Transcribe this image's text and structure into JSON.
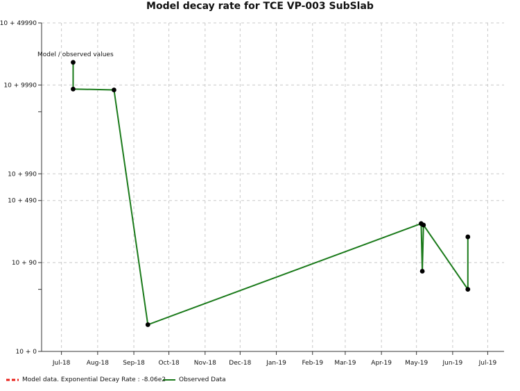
{
  "chart_data": {
    "type": "line",
    "title": "Model decay rate for  TCE VP-003 SubSlab",
    "xlabel": "",
    "ylabel": "",
    "x_tick_labels": [
      "Jul-18",
      "Aug-18",
      "Sep-18",
      "Oct-18",
      "Nov-18",
      "Dec-18",
      "Jan-19",
      "Feb-19",
      "Mar-19",
      "Apr-19",
      "May-19",
      "Jun-19",
      "Jul-19"
    ],
    "x_tick_dates": [
      "2018-07-01",
      "2018-08-01",
      "2018-09-01",
      "2018-10-01",
      "2018-11-01",
      "2018-12-01",
      "2019-01-01",
      "2019-02-01",
      "2019-03-01",
      "2019-04-01",
      "2019-05-01",
      "2019-06-01",
      "2019-07-01"
    ],
    "xlim": [
      "2018-06-14",
      "2019-07-15"
    ],
    "y_scale": "log",
    "y_tick_labels": [
      "10 + 0",
      "10 + 90",
      "10 + 490",
      "10 + 990",
      "10 + 9990",
      "10 + 49990"
    ],
    "y_tick_values": [
      10,
      100,
      500,
      1000,
      10000,
      50000
    ],
    "ylim": [
      10,
      50000
    ],
    "grid": true,
    "annotation": "Model / observed values",
    "series": [
      {
        "name": "Observed Data",
        "color": "#1a7a1a",
        "marker_color": "#000000",
        "points": [
          {
            "x": "2018-07-11",
            "y": 18000
          },
          {
            "x": "2018-07-11",
            "y": 9000
          },
          {
            "x": "2018-08-15",
            "y": 8800
          },
          {
            "x": "2018-09-13",
            "y": 20
          },
          {
            "x": "2019-05-05",
            "y": 275
          },
          {
            "x": "2019-05-06",
            "y": 80
          },
          {
            "x": "2019-05-07",
            "y": 265
          },
          {
            "x": "2019-06-14",
            "y": 50
          },
          {
            "x": "2019-06-14",
            "y": 195
          }
        ]
      }
    ],
    "legend": {
      "position": "bottom-left",
      "items": [
        {
          "label": "Model data. Exponential Decay Rate : -8.06e2",
          "color": "#e8201a",
          "style": "dashed"
        },
        {
          "label": "Observed Data",
          "color": "#1a7a1a",
          "style": "solid"
        }
      ]
    }
  }
}
